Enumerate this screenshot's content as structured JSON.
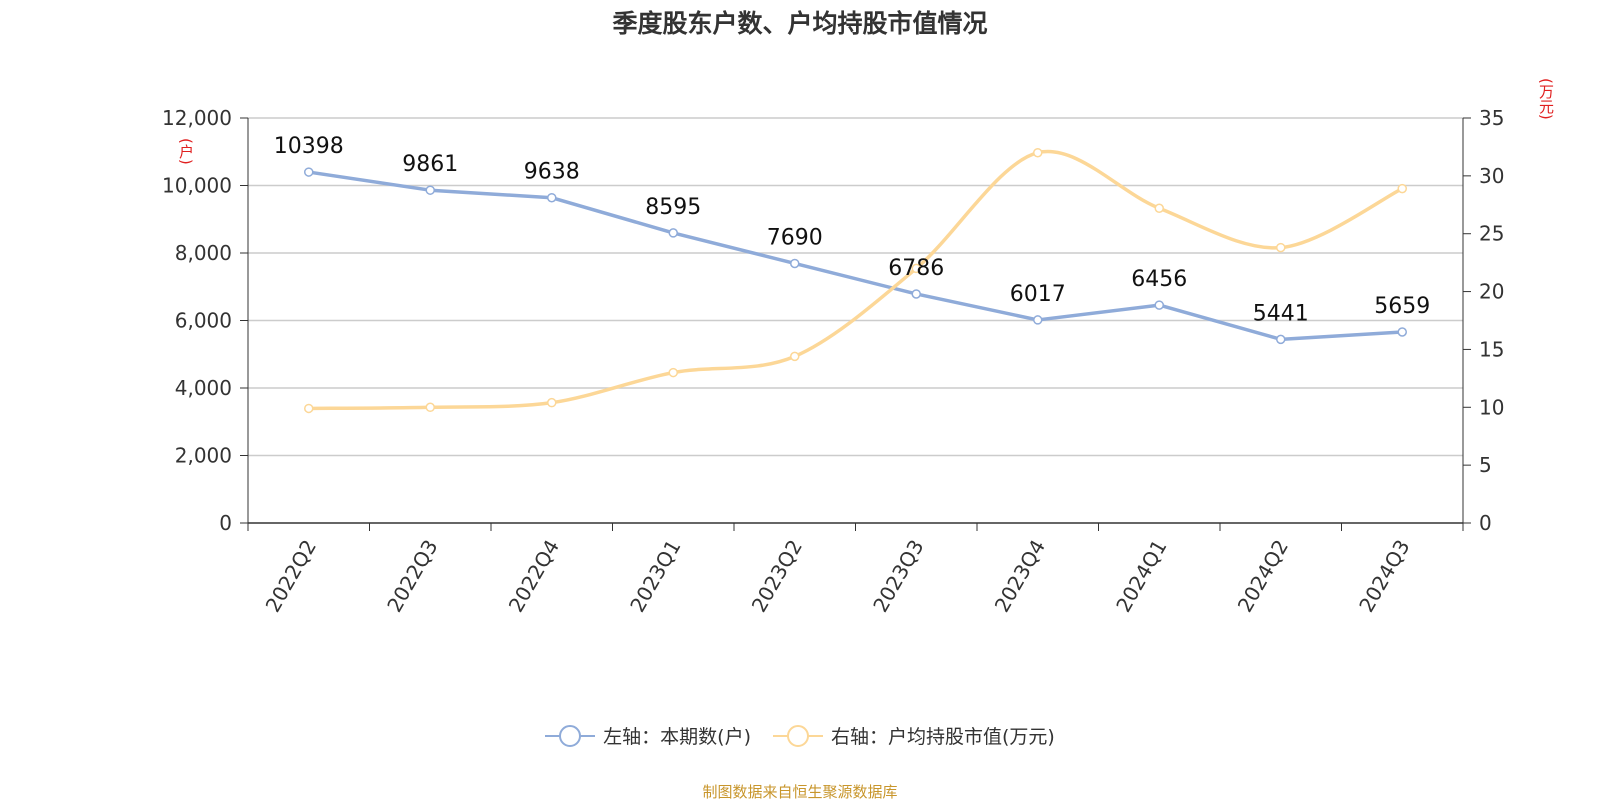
{
  "title": "季度股东户数、户均持股市值情况",
  "left_unit": "(户)",
  "right_unit": "(万元)",
  "source": "制图数据来自恒生聚源数据库",
  "colors": {
    "series1": "#8fabd9",
    "series2": "#fcd797",
    "axis": "#333333",
    "grid": "#cccccc",
    "unit": "#e02020"
  },
  "chart_data": {
    "type": "line",
    "categories": [
      "2022Q2",
      "2022Q3",
      "2022Q4",
      "2023Q1",
      "2023Q2",
      "2023Q3",
      "2023Q4",
      "2024Q1",
      "2024Q2",
      "2024Q3"
    ],
    "left_axis": {
      "min": 0,
      "max": 12000,
      "step": 2000,
      "ticks": [
        "0",
        "2,000",
        "4,000",
        "6,000",
        "8,000",
        "10,000",
        "12,000"
      ]
    },
    "right_axis": {
      "min": 0,
      "max": 35,
      "step": 5,
      "ticks": [
        "0",
        "5",
        "10",
        "15",
        "20",
        "25",
        "30",
        "35"
      ]
    },
    "grid": true,
    "legend_position": "bottom",
    "series": [
      {
        "name": "左轴：本期数(户)",
        "axis": "left",
        "values": [
          10398,
          9861,
          9638,
          8595,
          7690,
          6786,
          6017,
          6456,
          5441,
          5659
        ],
        "labels": [
          "10398",
          "9861",
          "9638",
          "8595",
          "7690",
          "6786",
          "6017",
          "6456",
          "5441",
          "5659"
        ]
      },
      {
        "name": "右轴：户均持股市值(万元)",
        "axis": "right",
        "values": [
          9.9,
          10.0,
          10.4,
          13.0,
          14.4,
          22.0,
          32.0,
          27.2,
          23.8,
          28.9
        ]
      }
    ]
  }
}
